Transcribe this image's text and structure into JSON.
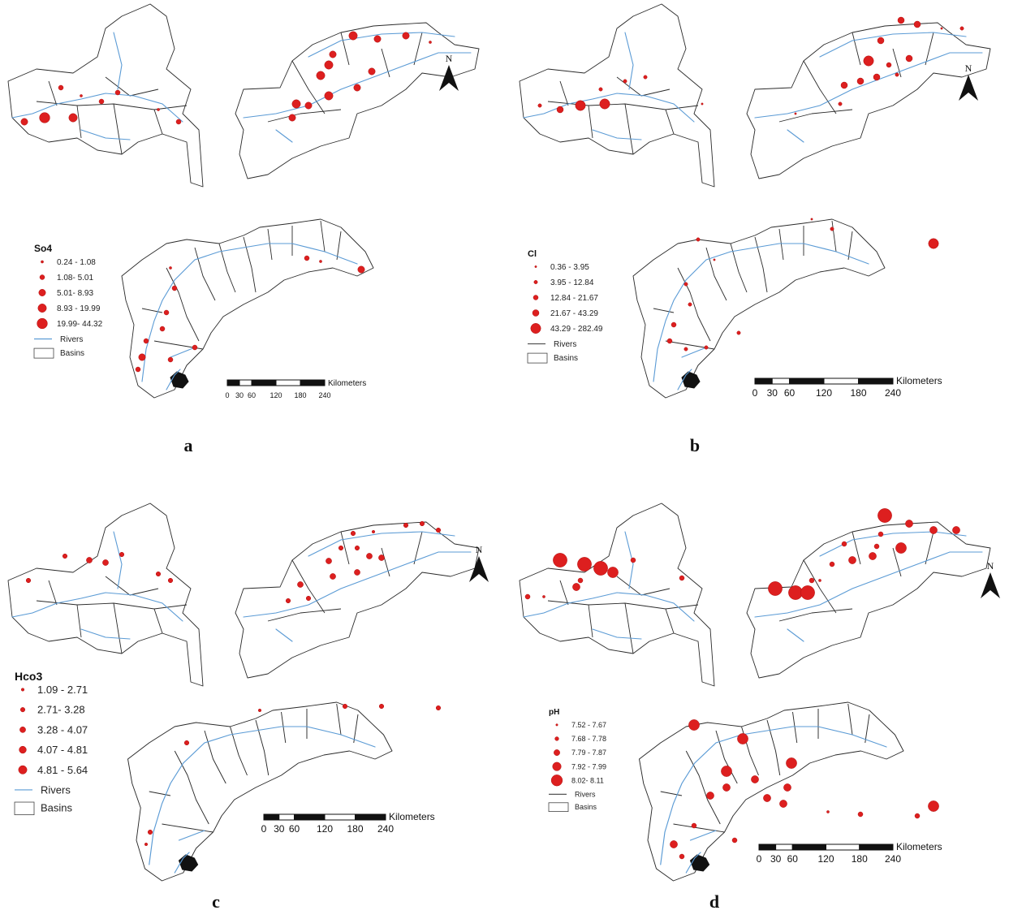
{
  "panels": [
    {
      "letter": "a",
      "legend_title": "So4",
      "classes": [
        "0.24 - 1.08",
        "1.08- 5.01",
        "5.01- 8.93",
        "8.93 - 19.99",
        "19.99- 44.32"
      ],
      "rivers_label": "Rivers",
      "basins_label": "Basins",
      "scale_units": "Kilometers",
      "scale_ticks": [
        "0",
        "30",
        "60",
        "120",
        "180",
        "240"
      ],
      "north_label": "N"
    },
    {
      "letter": "b",
      "legend_title": "Cl",
      "classes": [
        "0.36 - 3.95",
        "3.95 - 12.84",
        "12.84 - 21.67",
        "21.67 - 43.29",
        "43.29 - 282.49"
      ],
      "rivers_label": "Rivers",
      "basins_label": "Basins",
      "scale_units": "Kilometers",
      "scale_ticks": [
        "0",
        "30",
        "60",
        "120",
        "180",
        "240"
      ],
      "north_label": "N"
    },
    {
      "letter": "c",
      "legend_title": "Hco3",
      "classes": [
        "1.09 - 2.71",
        "2.71- 3.28",
        "3.28 - 4.07",
        "4.07 - 4.81",
        "4.81 - 5.64"
      ],
      "rivers_label": "Rivers",
      "basins_label": "Basins",
      "scale_units": "Kilometers",
      "scale_ticks": [
        "0",
        "30",
        "60",
        "120",
        "180",
        "240"
      ],
      "north_label": "N"
    },
    {
      "letter": "d",
      "legend_title": "pH",
      "classes": [
        "7.52 - 7.67",
        "7.68 - 7.78",
        "7.79 - 7.87",
        "7.92 - 7.99",
        "8.02- 8.11"
      ],
      "rivers_label": "Rivers",
      "basins_label": "Basins",
      "scale_units": "Kilometers",
      "scale_ticks": [
        "0",
        "30",
        "60",
        "120",
        "180",
        "240"
      ],
      "north_label": "N"
    }
  ],
  "colors": {
    "site": "#dd1f1f",
    "river": "#5b9bd5",
    "outline": "#2a2a2a"
  }
}
